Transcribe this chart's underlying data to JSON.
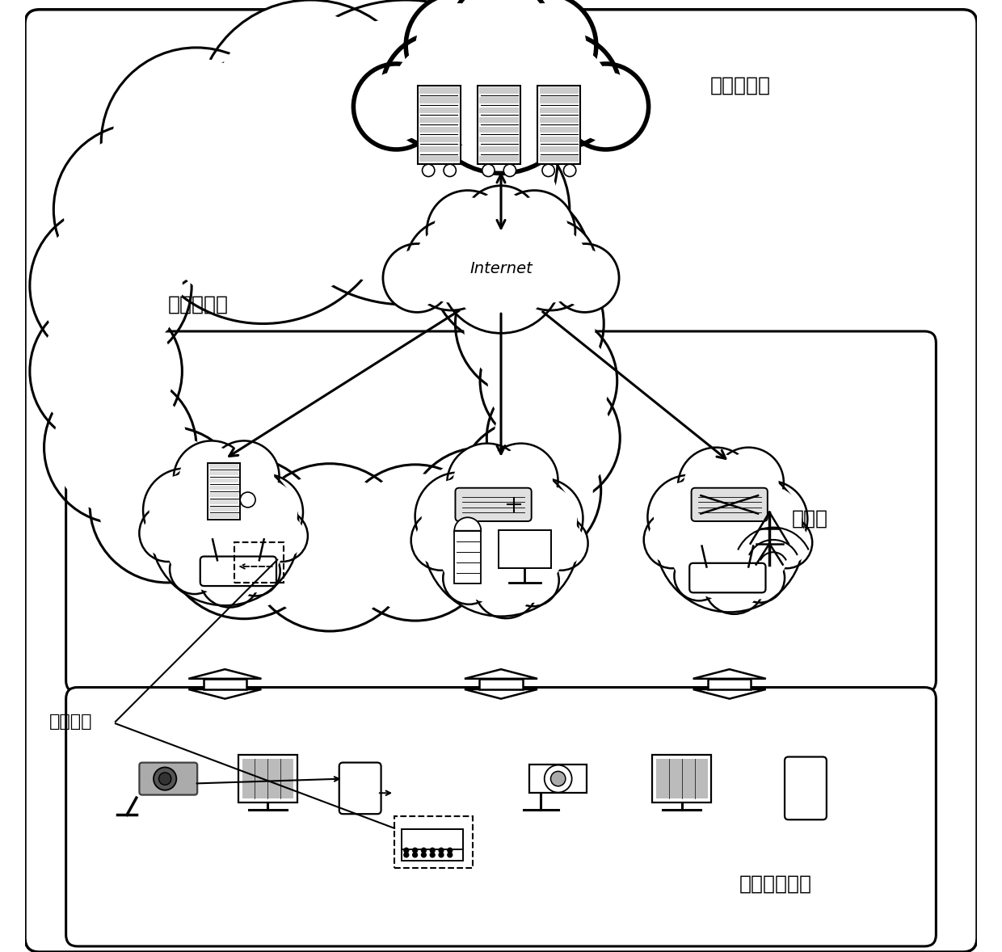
{
  "bg_color": "#ffffff",
  "labels": {
    "cloud_center": "云计算中心",
    "cloud_service": "云计算服务",
    "internet": "Internet",
    "edge_cloud": "边缘云",
    "terminal": "终端接入设备",
    "anomaly": "异常节点"
  },
  "font_size_labels": 18,
  "outline_color": "#000000",
  "fill_color": "#ffffff"
}
